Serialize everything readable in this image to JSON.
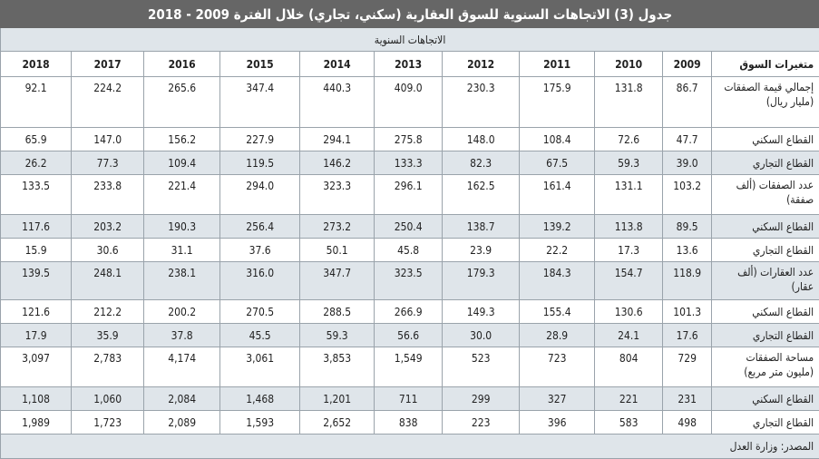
{
  "title": "جدول (3) الاتجاهات السنوية للسوق العقارية (سكني، تجاري) خلال الفترة 2009 - 2018",
  "subtitle": "الاتجاهات السنوية",
  "header": {
    "label": "متغيرات السوق",
    "years": [
      "2009",
      "2010",
      "2011",
      "2012",
      "2013",
      "2014",
      "2015",
      "2016",
      "2017",
      "2018"
    ]
  },
  "rows": [
    {
      "label": "إجمالي قيمة الصفقات (مليار ريال)",
      "values": [
        "86.7",
        "131.8",
        "175.9",
        "230.3",
        "409.0",
        "440.3",
        "347.4",
        "265.6",
        "224.2",
        "92.1"
      ],
      "tall": true,
      "shade": false
    },
    {
      "label": "القطاع السكني",
      "values": [
        "47.7",
        "72.6",
        "108.4",
        "148.0",
        "275.8",
        "294.1",
        "227.9",
        "156.2",
        "147.0",
        "65.9"
      ],
      "tall": false,
      "shade": false
    },
    {
      "label": "القطاع التجاري",
      "values": [
        "39.0",
        "59.3",
        "67.5",
        "82.3",
        "133.3",
        "146.2",
        "119.5",
        "109.4",
        "77.3",
        "26.2"
      ],
      "tall": false,
      "shade": true
    },
    {
      "label": "عدد الصفقات (ألف صفقة)",
      "values": [
        "103.2",
        "131.1",
        "161.4",
        "162.5",
        "296.1",
        "323.3",
        "294.0",
        "221.4",
        "233.8",
        "133.5"
      ],
      "tall": true,
      "shade": false
    },
    {
      "label": "القطاع السكني",
      "values": [
        "89.5",
        "113.8",
        "139.2",
        "138.7",
        "250.4",
        "273.2",
        "256.4",
        "190.3",
        "203.2",
        "117.6"
      ],
      "tall": false,
      "shade": true
    },
    {
      "label": "القطاع التجاري",
      "values": [
        "13.6",
        "17.3",
        "22.2",
        "23.9",
        "45.8",
        "50.1",
        "37.6",
        "31.1",
        "30.6",
        "15.9"
      ],
      "tall": false,
      "shade": false
    },
    {
      "label": "عدد العقارات (ألف عقار)",
      "values": [
        "118.9",
        "154.7",
        "184.3",
        "179.3",
        "323.5",
        "347.7",
        "316.0",
        "238.1",
        "248.1",
        "139.5"
      ],
      "tall": true,
      "shade": true
    },
    {
      "label": "القطاع السكني",
      "values": [
        "101.3",
        "130.6",
        "155.4",
        "149.3",
        "266.9",
        "288.5",
        "270.5",
        "200.2",
        "212.2",
        "121.6"
      ],
      "tall": false,
      "shade": false
    },
    {
      "label": "القطاع التجاري",
      "values": [
        "17.6",
        "24.1",
        "28.9",
        "30.0",
        "56.6",
        "59.3",
        "45.5",
        "37.8",
        "35.9",
        "17.9"
      ],
      "tall": false,
      "shade": true
    },
    {
      "label": "مساحة الصفقات (مليون متر مربع)",
      "values": [
        "729",
        "804",
        "723",
        "523",
        "1,549",
        "3,853",
        "3,061",
        "4,174",
        "2,783",
        "3,097"
      ],
      "tall": true,
      "shade": false
    },
    {
      "label": "القطاع السكني",
      "values": [
        "231",
        "221",
        "327",
        "299",
        "711",
        "1,201",
        "1,468",
        "2,084",
        "1,060",
        "1,108"
      ],
      "tall": false,
      "shade": true
    },
    {
      "label": "القطاع التجاري",
      "values": [
        "498",
        "583",
        "396",
        "223",
        "838",
        "2,652",
        "1,593",
        "2,089",
        "1,723",
        "1,989"
      ],
      "tall": false,
      "shade": false
    }
  ],
  "source": "المصدر: وزارة العدل"
}
